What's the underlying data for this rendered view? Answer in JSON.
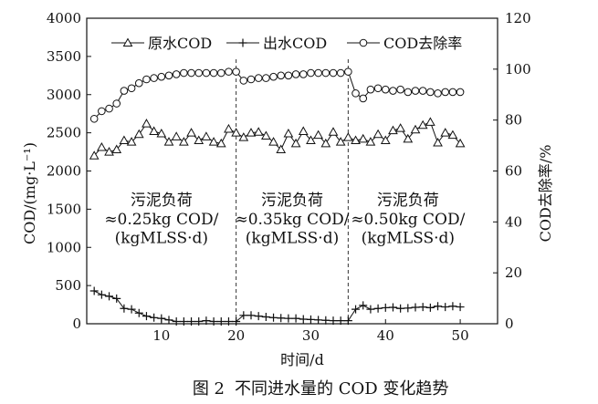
{
  "chart_data": {
    "type": "line",
    "caption_label": "图 2",
    "caption_text": "不同进水量的 COD 变化趋势",
    "xlabel": "时间/d",
    "ylabel": "COD/(mg·L⁻¹)",
    "y2label": "COD去除率/%",
    "xlim": [
      0,
      55
    ],
    "ylim": [
      0,
      4000
    ],
    "y2lim": [
      0,
      120
    ],
    "xticks": [
      10,
      20,
      30,
      40,
      50
    ],
    "yticks": [
      0,
      500,
      1000,
      1500,
      2000,
      2500,
      3000,
      3500,
      4000
    ],
    "y2ticks": [
      0,
      20,
      40,
      60,
      80,
      100,
      120
    ],
    "grid": false,
    "legend_position": "top",
    "vlines": [
      20,
      35
    ],
    "x": [
      1,
      2,
      3,
      4,
      5,
      6,
      7,
      8,
      9,
      10,
      11,
      12,
      13,
      14,
      15,
      16,
      17,
      18,
      19,
      20,
      21,
      22,
      23,
      24,
      25,
      26,
      27,
      28,
      29,
      30,
      31,
      32,
      33,
      34,
      35,
      36,
      37,
      38,
      39,
      40,
      41,
      42,
      43,
      44,
      45,
      46,
      47,
      48,
      49,
      50
    ],
    "series": [
      {
        "name": "原水COD",
        "marker": "triangle",
        "axis": "left",
        "values": [
          2200,
          2310,
          2250,
          2280,
          2400,
          2380,
          2480,
          2620,
          2520,
          2490,
          2380,
          2450,
          2380,
          2500,
          2400,
          2450,
          2380,
          2360,
          2550,
          2500,
          2440,
          2500,
          2510,
          2460,
          2380,
          2280,
          2490,
          2360,
          2520,
          2400,
          2470,
          2360,
          2510,
          2380,
          2440,
          2400,
          2420,
          2380,
          2480,
          2400,
          2530,
          2560,
          2420,
          2540,
          2600,
          2640,
          2370,
          2500,
          2470,
          2360
        ]
      },
      {
        "name": "出水COD",
        "marker": "plus",
        "axis": "left",
        "values": [
          430,
          380,
          360,
          330,
          200,
          190,
          140,
          100,
          80,
          70,
          50,
          30,
          30,
          30,
          30,
          40,
          30,
          30,
          30,
          30,
          110,
          110,
          100,
          90,
          80,
          75,
          70,
          70,
          60,
          55,
          50,
          45,
          40,
          40,
          40,
          190,
          240,
          190,
          200,
          210,
          215,
          200,
          205,
          215,
          220,
          210,
          230,
          220,
          230,
          220
        ]
      },
      {
        "name": "COD去除率",
        "marker": "circle",
        "axis": "right",
        "values": [
          80.5,
          83.5,
          84.5,
          86.5,
          91.5,
          92.5,
          94.5,
          96,
          96.5,
          97,
          97.5,
          98,
          98.5,
          98.5,
          98.5,
          98.5,
          98.5,
          98.5,
          99,
          99,
          95.5,
          96,
          96.5,
          96.5,
          97,
          97.5,
          97.5,
          98,
          98,
          98.5,
          98.5,
          98.5,
          98.5,
          98.5,
          99,
          90.5,
          88.5,
          92,
          92.5,
          92,
          91.5,
          92,
          91,
          91.5,
          91.5,
          91,
          90.5,
          91,
          91,
          91
        ]
      }
    ],
    "annotations": [
      {
        "lines": [
          "污泥负荷",
          "≈0.25kg COD/",
          "(kgMLSS·d)"
        ],
        "x": 10,
        "y": [
          1550,
          1300,
          1055
        ]
      },
      {
        "lines": [
          "污泥负荷",
          "≈0.35kg COD/",
          "(kgMLSS·d)"
        ],
        "x": 27.5,
        "y": [
          1550,
          1300,
          1055
        ]
      },
      {
        "lines": [
          "污泥负荷",
          "≈0.50kg COD/",
          "(kgMLSS·d)"
        ],
        "x": 43,
        "y": [
          1550,
          1300,
          1055
        ]
      }
    ]
  }
}
